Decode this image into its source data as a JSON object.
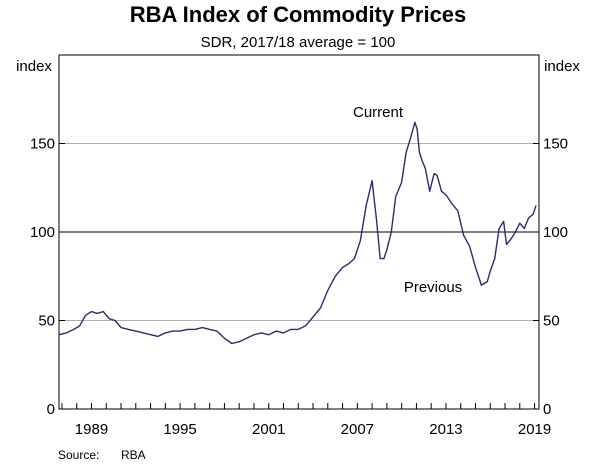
{
  "chart_data": {
    "type": "line",
    "title": "RBA Index of Commodity Prices",
    "subtitle": "SDR, 2017/18 average = 100",
    "ylabel_left": "index",
    "ylabel_right": "index",
    "xlim": [
      1986.8,
      2019.3
    ],
    "ylim": [
      0,
      200
    ],
    "yticks": [
      0,
      50,
      100,
      150
    ],
    "xticks": [
      1989,
      1995,
      2001,
      2007,
      2013,
      2019
    ],
    "grid": true,
    "reference_line": 100,
    "source_label": "Source:",
    "source_value": "RBA",
    "annotations": [
      {
        "text": "Current",
        "color": "#1f2a8c"
      },
      {
        "text": "Previous",
        "color": "#e8651a"
      }
    ],
    "series": [
      {
        "color": "#2e2a73",
        "x": [
          1986.8,
          1987.3,
          1987.8,
          1988.2,
          1988.6,
          1989.0,
          1989.4,
          1989.8,
          1990.2,
          1990.6,
          1991.0,
          1991.5,
          1992.0,
          1992.5,
          1993.0,
          1993.5,
          1994.0,
          1994.5,
          1995.0,
          1995.5,
          1996.0,
          1996.5,
          1997.0,
          1997.5,
          1998.0,
          1998.5,
          1999.0,
          1999.5,
          2000.0,
          2000.5,
          2001.0,
          2001.5,
          2002.0,
          2002.5,
          2003.0,
          2003.5,
          2004.0,
          2004.5,
          2005.0,
          2005.5,
          2006.0,
          2006.4,
          2006.8,
          2007.2,
          2007.6,
          2008.0,
          2008.3,
          2008.55,
          2008.8,
          2009.0,
          2009.3,
          2009.6,
          2010.0,
          2010.3,
          2010.6,
          2010.9,
          2011.05,
          2011.2,
          2011.4,
          2011.6,
          2011.9,
          2012.2,
          2012.4,
          2012.7,
          2013.0,
          2013.4,
          2013.8,
          2014.2,
          2014.6,
          2015.0,
          2015.4,
          2015.8,
          2016.0,
          2016.3,
          2016.6,
          2016.9,
          2017.1,
          2017.4,
          2017.7,
          2018.0,
          2018.3,
          2018.6,
          2018.9,
          2019.1
        ],
        "values": [
          42,
          43,
          45,
          47,
          53,
          55,
          54,
          55,
          51,
          50,
          46,
          45,
          44,
          43,
          42,
          41,
          43,
          44,
          44,
          45,
          45,
          46,
          45,
          44,
          40,
          37,
          38,
          40,
          42,
          43,
          42,
          44,
          43,
          45,
          45,
          47,
          52,
          57,
          67,
          75,
          80,
          82,
          85,
          95,
          115,
          129,
          107,
          85,
          85,
          90,
          100,
          120,
          128,
          145,
          153,
          162,
          158,
          145,
          140,
          136,
          123,
          133,
          132,
          123,
          121,
          116,
          112,
          98,
          92,
          80,
          70,
          72,
          78,
          85,
          102,
          106,
          93,
          96,
          100,
          105,
          102,
          108,
          110,
          115
        ]
      }
    ]
  }
}
